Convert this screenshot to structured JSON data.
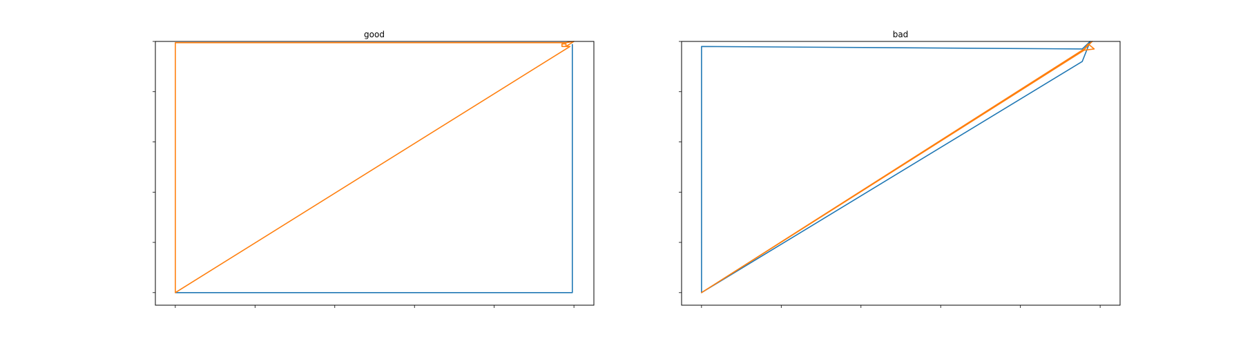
{
  "colors": {
    "series1": "#1f77b4",
    "series2": "#ff7f0e"
  },
  "chart_data": [
    {
      "type": "line",
      "title": "good",
      "xlabel": "",
      "ylabel": "",
      "xlim": [
        -0.05,
        1.05
      ],
      "ylim": [
        -0.05,
        1.0
      ],
      "x_ticks": [
        0,
        0.2,
        0.4,
        0.6,
        0.8,
        1.0
      ],
      "y_ticks": [
        0,
        0.2,
        0.4,
        0.6,
        0.8,
        1.0
      ],
      "x_tick_labels_visible": false,
      "y_tick_labels_visible": false,
      "series": [
        {
          "color": "#1f77b4",
          "x": [
            0,
            0.996,
            0.996
          ],
          "y": [
            0,
            0,
            0.988
          ]
        },
        {
          "color": "#ff7f0e",
          "x": [
            0,
            0,
            0.98,
            1.0,
            0.98,
            0.98,
            0.97,
            0.97,
            0.99,
            0
          ],
          "y": [
            0,
            0.995,
            0.995,
            1.0,
            0.98,
            0.99,
            0.99,
            0.98,
            0.98,
            0
          ]
        }
      ]
    },
    {
      "type": "line",
      "title": "bad",
      "xlabel": "",
      "ylabel": "",
      "xlim": [
        -0.05,
        1.05
      ],
      "ylim": [
        -0.05,
        1.0
      ],
      "x_ticks": [
        0,
        0.2,
        0.4,
        0.6,
        0.8,
        1.0
      ],
      "y_ticks": [
        0,
        0.2,
        0.4,
        0.6,
        0.8,
        1.0
      ],
      "x_tick_labels_visible": false,
      "y_tick_labels_visible": false,
      "series": [
        {
          "color": "#1f77b4",
          "x": [
            0,
            0,
            0.955,
            0.975,
            0.955,
            0
          ],
          "y": [
            0,
            0.98,
            0.97,
            1.0,
            0.92,
            0
          ]
        },
        {
          "color": "#ff7f0e",
          "x": [
            0,
            0.96,
            0.98,
            0.955,
            0.97,
            0.985,
            0.96,
            0
          ],
          "y": [
            0,
            0.97,
            1.0,
            0.96,
            0.99,
            0.97,
            0.965,
            0
          ]
        }
      ]
    }
  ]
}
